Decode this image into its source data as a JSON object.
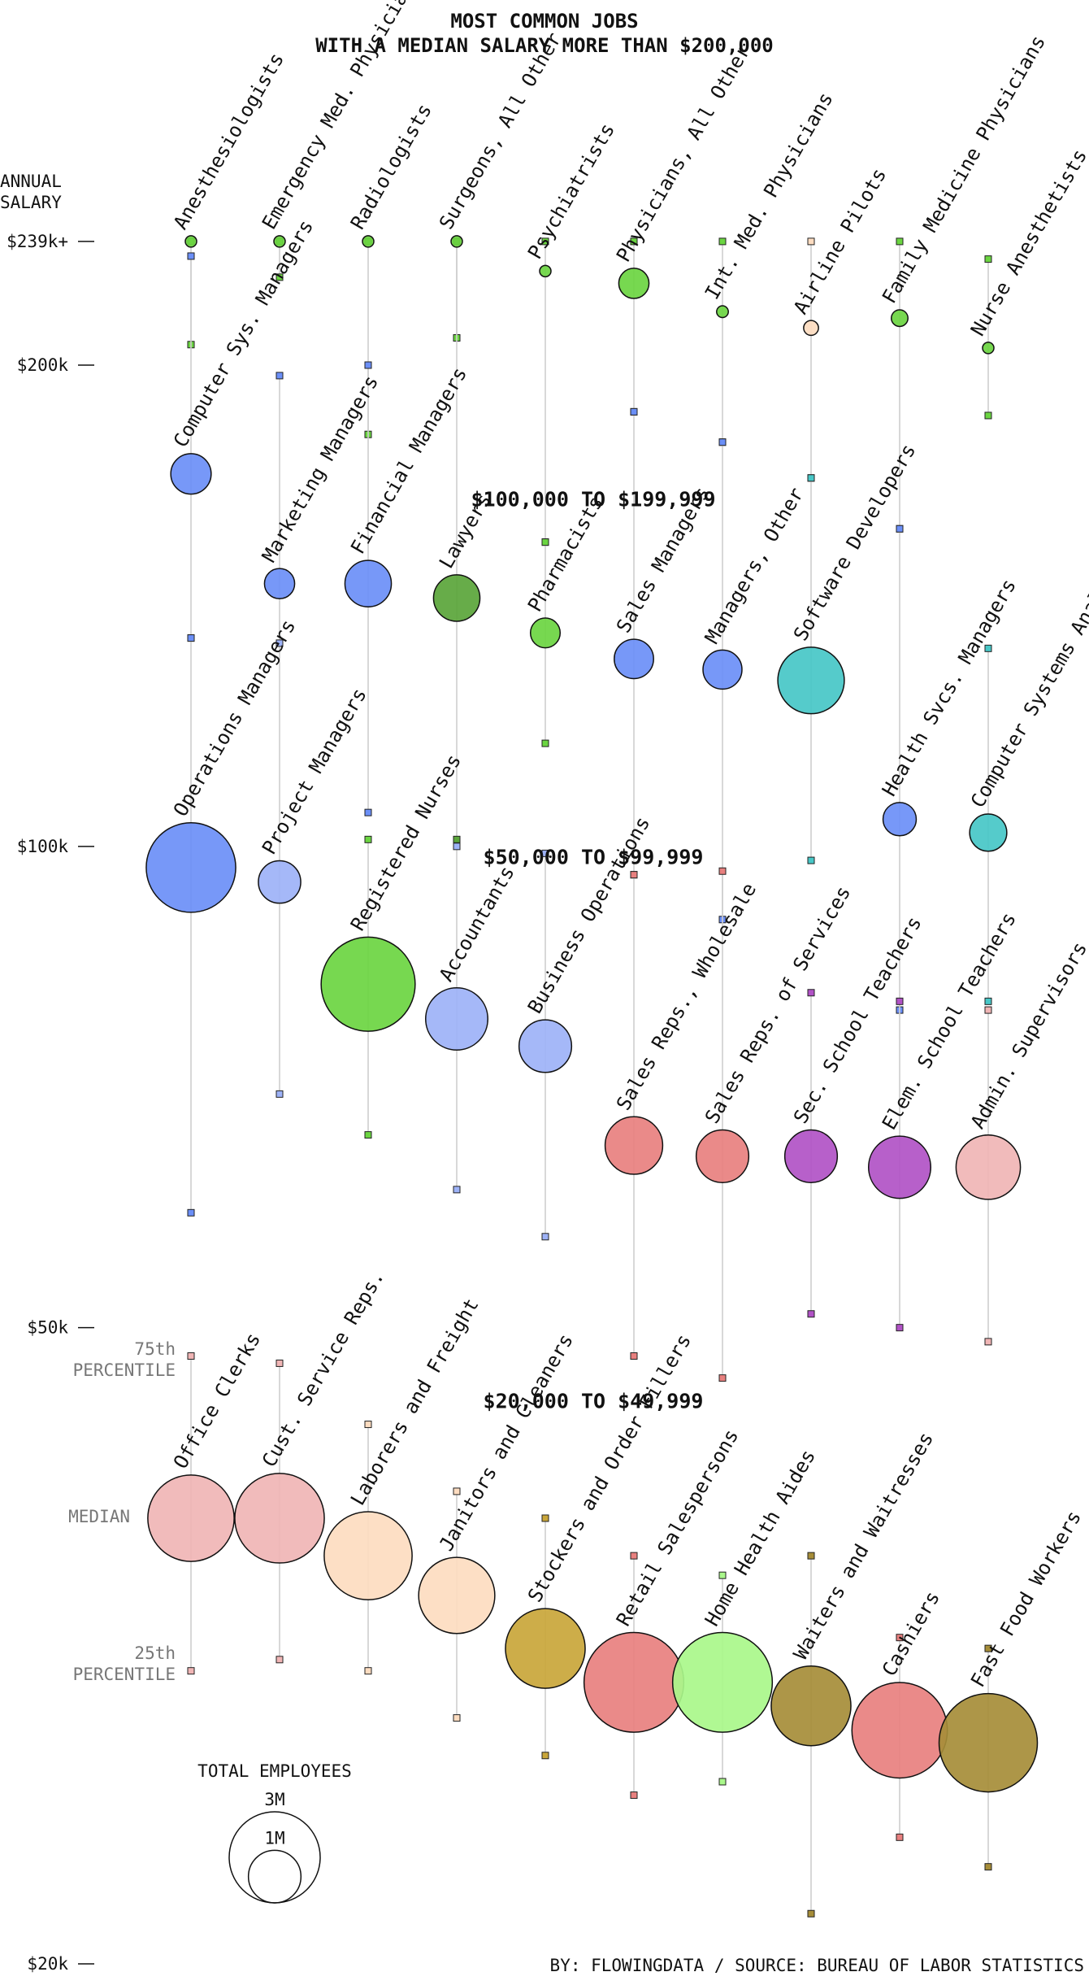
{
  "chart_data": {
    "type": "scatter",
    "title": [
      "MOST COMMON JOBS",
      "WITH A MEDIAN SALARY MORE THAN $200,000"
    ],
    "y_axis": {
      "label": [
        "ANNUAL",
        "SALARY"
      ],
      "scale": "log",
      "ticks": [
        {
          "value": 239000,
          "label": "$239k+"
        },
        {
          "value": 200000,
          "label": "$200k"
        },
        {
          "value": 100000,
          "label": "$100k"
        },
        {
          "value": 50000,
          "label": "$50k"
        },
        {
          "value": 20000,
          "label": "$20k"
        }
      ]
    },
    "band_labels": [
      {
        "text": "$100,000 TO $199,999",
        "salary": 165000
      },
      {
        "text": "$50,000 TO $99,999",
        "salary": 98500
      },
      {
        "text": "$20,000 TO $49,999",
        "salary": 45000
      }
    ],
    "percentile_labels": {
      "p75": [
        "75th",
        "PERCENTILE"
      ],
      "median": "MEDIAN",
      "p25": [
        "25th",
        "PERCENTILE"
      ]
    },
    "legend": {
      "title": "TOTAL EMPLOYEES",
      "items": [
        {
          "label": "3M",
          "value": 3000000
        },
        {
          "label": "1M",
          "value": 1000000
        }
      ]
    },
    "credit": "BY: FLOWINGDATA / SOURCE: BUREAU OF LABOR STATISTICS",
    "colors": {
      "blue": "#6b8ff7",
      "lightblue": "#9db2f7",
      "green": "#6bd541",
      "darkgreen": "#5aa53a",
      "lightgreen": "#a9f78a",
      "teal": "#47c7c7",
      "peach": "#fddcc0",
      "red": "#e8807f",
      "pink": "#f0b5b5",
      "purple": "#b152c6",
      "gold": "#c9a63a",
      "olive": "#a68d38"
    },
    "series": [
      {
        "name": "Anesthesiologists",
        "column": 1,
        "median": 239000,
        "p75": 239000,
        "p25": 206000,
        "employees": 30000,
        "color": "green"
      },
      {
        "name": "Emergency Med. Physicians",
        "column": 2,
        "median": 239000,
        "p75": 239000,
        "p25": 227000,
        "employees": 25000,
        "color": "green"
      },
      {
        "name": "Radiologists",
        "column": 3,
        "median": 239000,
        "p75": 239000,
        "p25": 181000,
        "employees": 30000,
        "color": "green"
      },
      {
        "name": "Surgeons, All Other",
        "column": 4,
        "median": 239000,
        "p75": 239000,
        "p25": 208000,
        "employees": 35000,
        "color": "green"
      },
      {
        "name": "Psychiatrists",
        "column": 5,
        "median": 229000,
        "p75": 239000,
        "p25": 155000,
        "employees": 30000,
        "color": "green"
      },
      {
        "name": "Physicians, All Other",
        "column": 6,
        "median": 225000,
        "p75": 239000,
        "p25": 187000,
        "employees": 330000,
        "color": "green"
      },
      {
        "name": "Int. Med. Physicians",
        "column": 7,
        "median": 216000,
        "p75": 239000,
        "p25": 179000,
        "employees": 50000,
        "color": "green"
      },
      {
        "name": "Airline Pilots",
        "column": 8,
        "median": 211000,
        "p75": 239000,
        "p25": 170000,
        "employees": 80000,
        "color": "peach"
      },
      {
        "name": "Family Medicine Physicians",
        "column": 9,
        "median": 214000,
        "p75": 239000,
        "p25": 158000,
        "employees": 100000,
        "color": "green"
      },
      {
        "name": "Nurse Anesthetists",
        "column": 10,
        "median": 205000,
        "p75": 233000,
        "p25": 186000,
        "employees": 45000,
        "color": "green"
      },
      {
        "name": "Computer Sys. Managers",
        "column": 1,
        "median": 171000,
        "p75": 234000,
        "p25": 135000,
        "employees": 590000,
        "color": "blue"
      },
      {
        "name": "Marketing Managers",
        "column": 2,
        "median": 146000,
        "p75": 197000,
        "p25": 134000,
        "employees": 330000,
        "color": "blue"
      },
      {
        "name": "Financial Managers",
        "column": 3,
        "median": 146000,
        "p75": 200000,
        "p25": 105000,
        "employees": 780000,
        "color": "blue"
      },
      {
        "name": "Lawyers",
        "column": 4,
        "median": 143000,
        "p75": 239000,
        "p25": 101000,
        "employees": 780000,
        "color": "darkgreen"
      },
      {
        "name": "Pharmacists",
        "column": 5,
        "median": 136000,
        "p75": 155000,
        "p25": 116000,
        "employees": 320000,
        "color": "green"
      },
      {
        "name": "Sales Managers",
        "column": 6,
        "median": 131000,
        "p75": 187000,
        "p25": 96000,
        "employees": 560000,
        "color": "blue"
      },
      {
        "name": "Managers, Other",
        "column": 7,
        "median": 129000,
        "p75": 179000,
        "p25": 90000,
        "employees": 550000,
        "color": "blue"
      },
      {
        "name": "Software Developers",
        "column": 8,
        "median": 127000,
        "p75": 170000,
        "p25": 98000,
        "employees": 1600000,
        "color": "teal"
      },
      {
        "name": "Health Svcs. Managers",
        "column": 9,
        "median": 104000,
        "p75": 158000,
        "p25": 79000,
        "employees": 400000,
        "color": "blue"
      },
      {
        "name": "Computer Systems Analysts",
        "column": 10,
        "median": 102000,
        "p75": 133000,
        "p25": 80000,
        "employees": 500000,
        "color": "teal"
      },
      {
        "name": "Operations Managers",
        "column": 1,
        "median": 97000,
        "p75": 135000,
        "p25": 59000,
        "employees": 2900000,
        "color": "blue"
      },
      {
        "name": "Project Managers",
        "column": 2,
        "median": 95000,
        "p75": 134000,
        "p25": 70000,
        "employees": 650000,
        "color": "lightblue"
      },
      {
        "name": "Registered Nurses",
        "column": 3,
        "median": 82000,
        "p75": 101000,
        "p25": 66000,
        "employees": 3200000,
        "color": "green"
      },
      {
        "name": "Accountants",
        "column": 4,
        "median": 78000,
        "p75": 100000,
        "p25": 61000,
        "employees": 1400000,
        "color": "lightblue"
      },
      {
        "name": "Business Operations",
        "column": 5,
        "median": 75000,
        "p75": 99000,
        "p25": 57000,
        "employees": 1000000,
        "color": "lightblue"
      },
      {
        "name": "Sales Reps., Wholesale",
        "column": 6,
        "median": 65000,
        "p75": 96000,
        "p25": 48000,
        "employees": 1200000,
        "color": "red"
      },
      {
        "name": "Sales Reps. of Services",
        "column": 7,
        "median": 64000,
        "p75": 96500,
        "p25": 46500,
        "employees": 1000000,
        "color": "red"
      },
      {
        "name": "Sec. School Teachers",
        "column": 8,
        "median": 64000,
        "p75": 81000,
        "p25": 51000,
        "employees": 1000000,
        "color": "purple"
      },
      {
        "name": "Elem. School Teachers",
        "column": 9,
        "median": 63000,
        "p75": 80000,
        "p25": 50000,
        "employees": 1400000,
        "color": "purple"
      },
      {
        "name": "Admin. Supervisors",
        "column": 10,
        "median": 63000,
        "p75": 79000,
        "p25": 49000,
        "employees": 1500000,
        "color": "pink"
      },
      {
        "name": "Office Clerks",
        "column": 1,
        "median": 38000,
        "p75": 48000,
        "p25": 30500,
        "employees": 2700000,
        "color": "pink"
      },
      {
        "name": "Cust. Service Reps.",
        "column": 2,
        "median": 38000,
        "p75": 47500,
        "p25": 31000,
        "employees": 2900000,
        "color": "pink"
      },
      {
        "name": "Laborers and Freight",
        "column": 3,
        "median": 36000,
        "p75": 43500,
        "p25": 30500,
        "employees": 2800000,
        "color": "peach"
      },
      {
        "name": "Janitors and Cleaners",
        "column": 4,
        "median": 34000,
        "p75": 39500,
        "p25": 28500,
        "employees": 2100000,
        "color": "peach"
      },
      {
        "name": "Stockers and Order Fillers",
        "column": 5,
        "median": 31500,
        "p75": 38000,
        "p25": 27000,
        "employees": 2300000,
        "color": "gold"
      },
      {
        "name": "Retail Salespersons",
        "column": 6,
        "median": 30000,
        "p75": 36000,
        "p25": 25500,
        "employees": 3600000,
        "color": "red"
      },
      {
        "name": "Home Health Aides",
        "column": 7,
        "median": 30000,
        "p75": 35000,
        "p25": 26000,
        "employees": 3600000,
        "color": "lightgreen"
      },
      {
        "name": "Waiters and Waitresses",
        "column": 8,
        "median": 29000,
        "p75": 36000,
        "p25": 21500,
        "employees": 2300000,
        "color": "olive"
      },
      {
        "name": "Cashiers",
        "column": 9,
        "median": 28000,
        "p75": 32000,
        "p25": 24000,
        "employees": 3300000,
        "color": "red"
      },
      {
        "name": "Fast Food Workers",
        "column": 10,
        "median": 27500,
        "p75": 31500,
        "p25": 23000,
        "employees": 3500000,
        "color": "olive"
      }
    ]
  }
}
